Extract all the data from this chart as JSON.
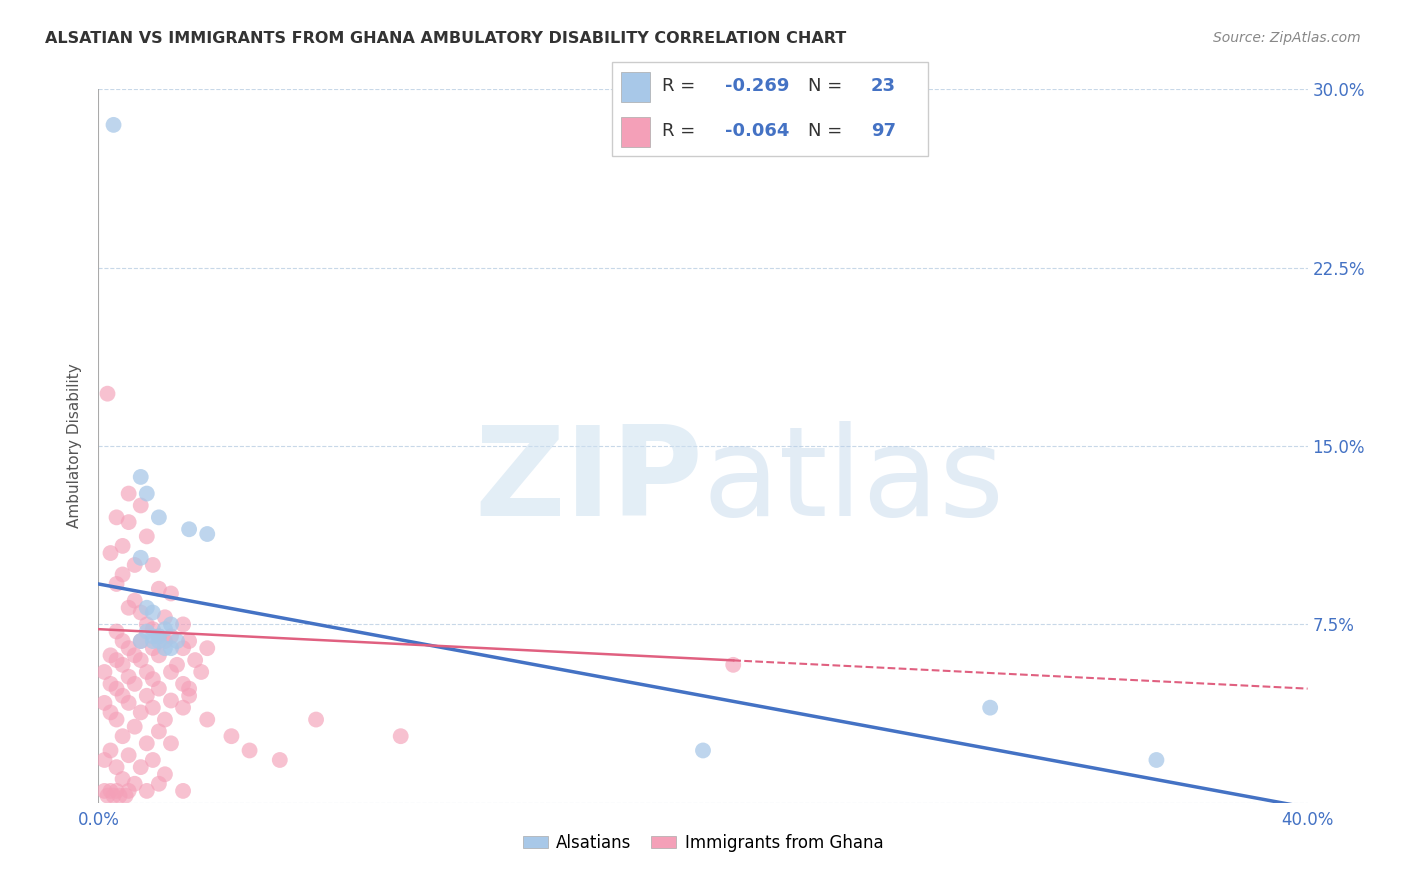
{
  "title": "ALSATIAN VS IMMIGRANTS FROM GHANA AMBULATORY DISABILITY CORRELATION CHART",
  "source": "Source: ZipAtlas.com",
  "ylabel": "Ambulatory Disability",
  "xlim": [
    0.0,
    0.4
  ],
  "ylim": [
    0.0,
    0.3
  ],
  "xtick_vals": [
    0.0,
    0.1,
    0.2,
    0.3,
    0.4
  ],
  "xtick_labels": [
    "0.0%",
    "",
    "",
    "",
    "40.0%"
  ],
  "ytick_vals": [
    0.0,
    0.075,
    0.15,
    0.225,
    0.3
  ],
  "ytick_labels": [
    "",
    "7.5%",
    "15.0%",
    "22.5%",
    "30.0%"
  ],
  "legend_label1": "Alsatians",
  "legend_label2": "Immigrants from Ghana",
  "color_blue": "#a8c8e8",
  "color_pink": "#f4a0b8",
  "color_line_blue": "#4472c4",
  "color_line_pink": "#e06080",
  "color_text_blue": "#4472c4",
  "blue_line": [
    [
      0.0,
      0.092
    ],
    [
      0.4,
      -0.002
    ]
  ],
  "pink_line": [
    [
      0.0,
      0.073
    ],
    [
      0.4,
      0.048
    ]
  ],
  "alsatian_points": [
    [
      0.005,
      0.285
    ],
    [
      0.014,
      0.137
    ],
    [
      0.016,
      0.13
    ],
    [
      0.014,
      0.103
    ],
    [
      0.02,
      0.12
    ],
    [
      0.016,
      0.082
    ],
    [
      0.018,
      0.08
    ],
    [
      0.024,
      0.075
    ],
    [
      0.016,
      0.072
    ],
    [
      0.018,
      0.07
    ],
    [
      0.02,
      0.07
    ],
    [
      0.018,
      0.068
    ],
    [
      0.022,
      0.073
    ],
    [
      0.02,
      0.068
    ],
    [
      0.03,
      0.115
    ],
    [
      0.014,
      0.068
    ],
    [
      0.036,
      0.113
    ],
    [
      0.026,
      0.068
    ],
    [
      0.022,
      0.065
    ],
    [
      0.024,
      0.065
    ],
    [
      0.2,
      0.022
    ],
    [
      0.295,
      0.04
    ],
    [
      0.35,
      0.018
    ]
  ],
  "ghana_points": [
    [
      0.003,
      0.172
    ],
    [
      0.01,
      0.13
    ],
    [
      0.014,
      0.125
    ],
    [
      0.006,
      0.12
    ],
    [
      0.01,
      0.118
    ],
    [
      0.016,
      0.112
    ],
    [
      0.008,
      0.108
    ],
    [
      0.004,
      0.105
    ],
    [
      0.012,
      0.1
    ],
    [
      0.018,
      0.1
    ],
    [
      0.008,
      0.096
    ],
    [
      0.006,
      0.092
    ],
    [
      0.02,
      0.09
    ],
    [
      0.024,
      0.088
    ],
    [
      0.012,
      0.085
    ],
    [
      0.01,
      0.082
    ],
    [
      0.014,
      0.08
    ],
    [
      0.022,
      0.078
    ],
    [
      0.016,
      0.075
    ],
    [
      0.028,
      0.075
    ],
    [
      0.018,
      0.073
    ],
    [
      0.006,
      0.072
    ],
    [
      0.02,
      0.07
    ],
    [
      0.024,
      0.07
    ],
    [
      0.008,
      0.068
    ],
    [
      0.014,
      0.068
    ],
    [
      0.022,
      0.068
    ],
    [
      0.03,
      0.068
    ],
    [
      0.01,
      0.065
    ],
    [
      0.018,
      0.065
    ],
    [
      0.028,
      0.065
    ],
    [
      0.036,
      0.065
    ],
    [
      0.004,
      0.062
    ],
    [
      0.012,
      0.062
    ],
    [
      0.02,
      0.062
    ],
    [
      0.032,
      0.06
    ],
    [
      0.006,
      0.06
    ],
    [
      0.014,
      0.06
    ],
    [
      0.026,
      0.058
    ],
    [
      0.008,
      0.058
    ],
    [
      0.016,
      0.055
    ],
    [
      0.024,
      0.055
    ],
    [
      0.034,
      0.055
    ],
    [
      0.002,
      0.055
    ],
    [
      0.01,
      0.053
    ],
    [
      0.018,
      0.052
    ],
    [
      0.028,
      0.05
    ],
    [
      0.004,
      0.05
    ],
    [
      0.012,
      0.05
    ],
    [
      0.006,
      0.048
    ],
    [
      0.02,
      0.048
    ],
    [
      0.03,
      0.048
    ],
    [
      0.008,
      0.045
    ],
    [
      0.016,
      0.045
    ],
    [
      0.024,
      0.043
    ],
    [
      0.002,
      0.042
    ],
    [
      0.01,
      0.042
    ],
    [
      0.018,
      0.04
    ],
    [
      0.028,
      0.04
    ],
    [
      0.004,
      0.038
    ],
    [
      0.014,
      0.038
    ],
    [
      0.022,
      0.035
    ],
    [
      0.006,
      0.035
    ],
    [
      0.012,
      0.032
    ],
    [
      0.02,
      0.03
    ],
    [
      0.008,
      0.028
    ],
    [
      0.016,
      0.025
    ],
    [
      0.024,
      0.025
    ],
    [
      0.004,
      0.022
    ],
    [
      0.01,
      0.02
    ],
    [
      0.018,
      0.018
    ],
    [
      0.002,
      0.018
    ],
    [
      0.006,
      0.015
    ],
    [
      0.014,
      0.015
    ],
    [
      0.022,
      0.012
    ],
    [
      0.008,
      0.01
    ],
    [
      0.012,
      0.008
    ],
    [
      0.02,
      0.008
    ],
    [
      0.002,
      0.005
    ],
    [
      0.004,
      0.005
    ],
    [
      0.006,
      0.005
    ],
    [
      0.01,
      0.005
    ],
    [
      0.016,
      0.005
    ],
    [
      0.028,
      0.005
    ],
    [
      0.003,
      0.003
    ],
    [
      0.005,
      0.003
    ],
    [
      0.007,
      0.003
    ],
    [
      0.009,
      0.003
    ],
    [
      0.03,
      0.045
    ],
    [
      0.036,
      0.035
    ],
    [
      0.044,
      0.028
    ],
    [
      0.05,
      0.022
    ],
    [
      0.06,
      0.018
    ],
    [
      0.072,
      0.035
    ],
    [
      0.1,
      0.028
    ],
    [
      0.21,
      0.058
    ]
  ]
}
